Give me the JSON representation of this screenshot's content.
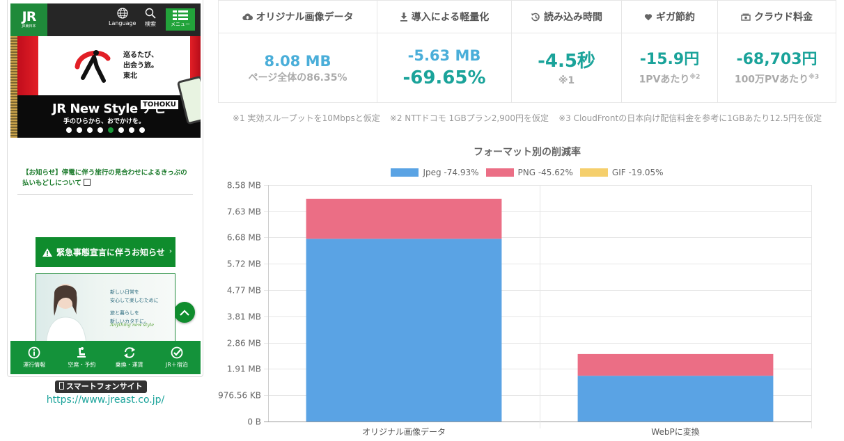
{
  "phone": {
    "logo_main": "JR",
    "logo_sub": "JR東日本",
    "lang_label": "Language",
    "search_label": "検索",
    "menu_label": "メニュー",
    "banner": {
      "tagline": [
        "巡るたび、",
        "出会う旅。",
        "東北"
      ],
      "title": "JR New Style ナビ",
      "badge": "TOHOKU",
      "subtitle": "手のひらから、おでかけを。",
      "slide_count": 8,
      "active_slide": 4
    },
    "notice_text": "【お知らせ】停電に伴う旅行の見合わせによるきっぷの払いもどしについて",
    "emergency_button": "緊急事態宣言に伴うお知らせ",
    "ad_lines": [
      "新しい日常を",
      "安心して楽しむために",
      "",
      "旅と暮らしを",
      "新しいカタチに。"
    ],
    "ad_script": "Anything new style",
    "tabs": [
      {
        "label": "運行情報",
        "icon": "info-icon"
      },
      {
        "label": "空席・予約",
        "icon": "seat-icon"
      },
      {
        "label": "乗換・運賃",
        "icon": "transfer-icon"
      },
      {
        "label": "JR＋宿泊",
        "icon": "check-badge-icon"
      }
    ]
  },
  "site_badge": "スマートフォンサイト",
  "site_url": "https://www.jreast.co.jp/",
  "stats": [
    {
      "icon": "cloud-download-icon",
      "header": "オリジナル画像データ",
      "values": [
        "8.08 MB"
      ],
      "note": "ページ全体の86.35%",
      "sup": ""
    },
    {
      "icon": "download-arrow-icon",
      "header": "導入による軽量化",
      "values": [
        "-5.63 MB",
        "-69.65%"
      ],
      "note": "",
      "sup": ""
    },
    {
      "icon": "history-icon",
      "header": "読み込み時間",
      "values": [
        "-4.5秒"
      ],
      "note": "※1",
      "sup": ""
    },
    {
      "icon": "heart-icon",
      "header": "ギガ節約",
      "values": [
        "-15.9円"
      ],
      "note": "1PVあたり",
      "sup": "※2"
    },
    {
      "icon": "money-icon",
      "header": "クラウド料金",
      "values": [
        "-68,703円"
      ],
      "note": "100万PVあたり",
      "sup": "※3"
    }
  ],
  "footnotes": [
    "※1 実効スループットを10Mbpsと仮定",
    "※2 NTTドコモ 1GBプラン2,900円を仮定",
    "※3 CloudFrontの日本向け配信料金を参考に1GBあたり12.5円を仮定"
  ],
  "colors": {
    "jpeg": "#5aa3e4",
    "png": "#eb6e85",
    "gif": "#f5cf6c",
    "teal": "#1aa39a",
    "blue": "#4aaed9",
    "jr_green": "#0f8c2d"
  },
  "chart_data": {
    "type": "bar",
    "stacked": true,
    "title": "フォーマット別の削減率",
    "categories": [
      "オリジナル画像データ",
      "WebPに変換"
    ],
    "series": [
      {
        "name": "Jpeg -74.93%",
        "values": [
          6.63,
          1.66
        ],
        "color": "#5aa3e4"
      },
      {
        "name": "PNG -45.62%",
        "values": [
          1.45,
          0.79
        ],
        "color": "#eb6e85"
      },
      {
        "name": "GIF -19.05%",
        "values": [
          0,
          0
        ],
        "color": "#f5cf6c"
      }
    ],
    "ylim": [
      0,
      8.58
    ],
    "y_ticks": [
      0,
      0.954,
      1.908,
      2.862,
      3.816,
      4.77,
      5.724,
      6.678,
      7.632,
      8.586
    ],
    "y_tick_labels": [
      "0 B",
      "976.56 KB",
      "1.91 MB",
      "2.86 MB",
      "3.81 MB",
      "4.77 MB",
      "5.72 MB",
      "6.68 MB",
      "7.63 MB",
      "8.58 MB"
    ],
    "grid": true,
    "legend": "top"
  }
}
